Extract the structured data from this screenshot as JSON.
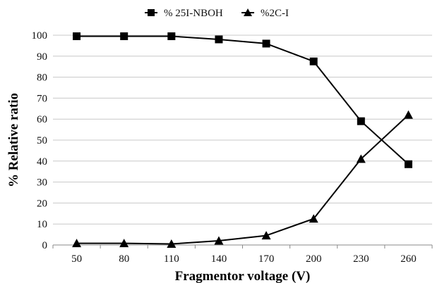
{
  "chart_data": {
    "type": "line",
    "xlabel": "Fragmentor voltage (V)",
    "ylabel": "% Relative ratio",
    "ylim": [
      0,
      100
    ],
    "y_ticks": [
      0,
      10,
      20,
      30,
      40,
      50,
      60,
      70,
      80,
      90,
      100
    ],
    "categories": [
      "50",
      "80",
      "110",
      "140",
      "170",
      "200",
      "230",
      "260"
    ],
    "grid": "horizontal",
    "legend_position": "top",
    "series": [
      {
        "name": "% 25I-NBOH",
        "marker": "square",
        "color": "#000000",
        "values": [
          99.5,
          99.5,
          99.5,
          98,
          96,
          87.5,
          59,
          38.5
        ]
      },
      {
        "name": "%2C-I",
        "marker": "triangle",
        "color": "#000000",
        "values": [
          0.8,
          0.8,
          0.5,
          2,
          4.5,
          12.5,
          41,
          62
        ]
      }
    ]
  }
}
